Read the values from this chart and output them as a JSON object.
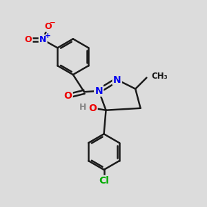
{
  "bg_color": "#dcdcdc",
  "bond_color": "#1a1a1a",
  "bond_width": 1.8,
  "atom_colors": {
    "N": "#0000ee",
    "O": "#ee0000",
    "Cl": "#00aa00",
    "C": "#1a1a1a",
    "H": "#888888"
  },
  "font_size_atoms": 10,
  "font_size_small": 8.5
}
